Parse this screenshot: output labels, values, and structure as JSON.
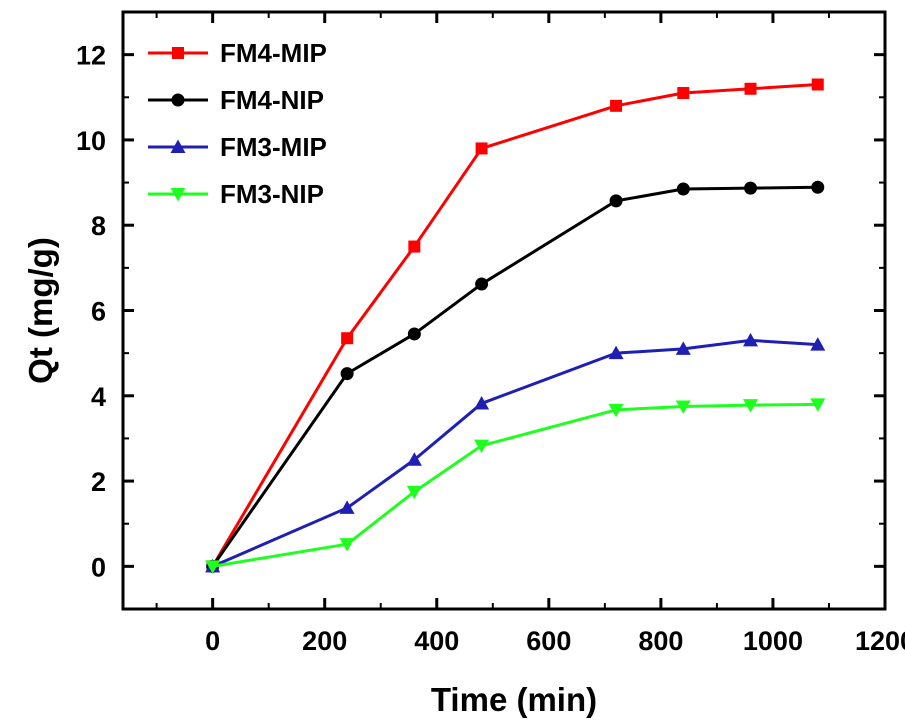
{
  "chart_data": {
    "type": "line",
    "title": "",
    "xlabel": "Time (min)",
    "ylabel": "Qt (mg/g)",
    "xlim": [
      -160,
      1200
    ],
    "ylim": [
      -1,
      13
    ],
    "xticks": [
      0,
      200,
      400,
      600,
      800,
      1000,
      1200
    ],
    "yticks": [
      0,
      2,
      4,
      6,
      8,
      10,
      12
    ],
    "xtick_labels": [
      "0",
      "200",
      "400",
      "600",
      "800",
      "1000",
      "1200"
    ],
    "ytick_labels": [
      "0",
      "2",
      "4",
      "6",
      "8",
      "10",
      "12"
    ],
    "grid": false,
    "legend_position": "top-left",
    "series": [
      {
        "name": "FM4-MIP",
        "color": "#ff0000",
        "marker": "square",
        "x": [
          0,
          240,
          360,
          480,
          720,
          840,
          960,
          1080
        ],
        "y": [
          0,
          5.35,
          7.5,
          9.8,
          10.8,
          11.1,
          11.2,
          11.3
        ]
      },
      {
        "name": "FM4-NIP",
        "color": "#000000",
        "marker": "circle",
        "x": [
          0,
          240,
          360,
          480,
          720,
          840,
          960,
          1080
        ],
        "y": [
          0,
          4.52,
          5.45,
          6.62,
          8.57,
          8.85,
          8.87,
          8.89
        ]
      },
      {
        "name": "FM3-MIP",
        "color": "#1f1fb4",
        "marker": "triangle-up",
        "x": [
          0,
          240,
          360,
          480,
          720,
          840,
          960,
          1080
        ],
        "y": [
          0,
          1.37,
          2.5,
          3.82,
          5.0,
          5.1,
          5.3,
          5.2
        ]
      },
      {
        "name": "FM3-NIP",
        "color": "#1fff1f",
        "marker": "triangle-down",
        "x": [
          0,
          240,
          360,
          480,
          720,
          840,
          960,
          1080
        ],
        "y": [
          0,
          0.52,
          1.75,
          2.83,
          3.67,
          3.75,
          3.78,
          3.8
        ]
      }
    ]
  }
}
